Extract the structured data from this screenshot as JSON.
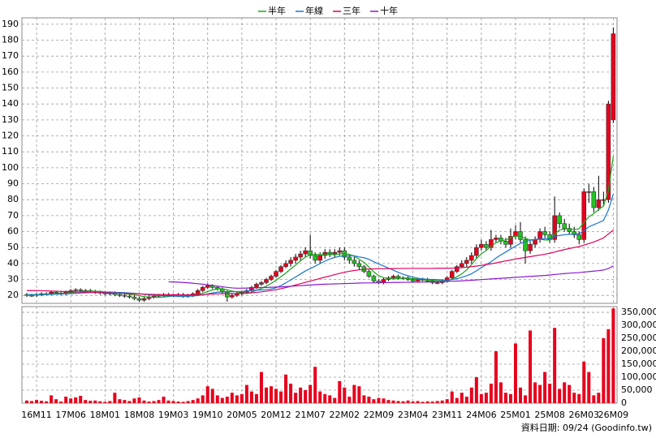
{
  "chart_data": {
    "type": "candlestick",
    "categories": [
      null,
      null,
      "16M11",
      null,
      null,
      null,
      null,
      null,
      null,
      "17M06",
      null,
      null,
      null,
      null,
      null,
      null,
      "18M01",
      null,
      null,
      null,
      null,
      null,
      null,
      "18M08",
      null,
      null,
      null,
      null,
      null,
      null,
      "19M03",
      null,
      null,
      null,
      null,
      null,
      null,
      "19M10",
      null,
      null,
      null,
      null,
      null,
      null,
      "20M05",
      null,
      null,
      null,
      null,
      null,
      null,
      "20M12",
      null,
      null,
      null,
      null,
      null,
      null,
      "21M07",
      null,
      null,
      null,
      null,
      null,
      null,
      "22M02",
      null,
      null,
      null,
      null,
      null,
      null,
      "22M09",
      null,
      null,
      null,
      null,
      null,
      null,
      "23M04",
      null,
      null,
      null,
      null,
      null,
      null,
      "23M11",
      null,
      null,
      null,
      null,
      null,
      null,
      "24M06",
      null,
      null,
      null,
      null,
      null,
      null,
      "25M01",
      null,
      null,
      null,
      null,
      null,
      null,
      "25M08",
      null,
      null,
      null,
      null,
      null,
      null,
      "26M03",
      null,
      null,
      null,
      null,
      null,
      "26M09"
    ],
    "open": [
      20.5,
      20,
      20,
      20.5,
      21,
      21,
      22,
      21.5,
      21,
      22,
      23,
      23.5,
      23,
      23,
      22.5,
      22,
      21.5,
      21,
      21.5,
      20.5,
      20,
      19.5,
      19,
      18,
      17,
      18,
      19,
      19.5,
      20,
      20.5,
      20,
      20,
      20.5,
      19.5,
      20,
      21,
      23,
      25,
      26,
      25,
      24,
      22,
      19,
      20,
      21,
      22,
      23,
      25,
      27,
      28,
      30,
      32,
      35,
      38,
      40,
      42,
      44,
      46,
      48,
      45,
      42,
      45,
      47,
      46,
      47,
      48,
      44,
      42,
      40,
      38,
      35,
      32,
      29,
      28,
      30,
      31,
      32,
      31,
      31,
      30,
      29,
      30,
      30,
      29,
      28,
      28,
      29,
      31,
      35,
      38,
      40,
      42,
      45,
      50,
      52,
      50,
      55,
      56,
      54,
      52,
      57,
      60,
      55,
      48,
      52,
      55,
      60,
      58,
      55,
      70,
      65,
      62,
      60,
      58,
      55,
      85,
      85,
      75,
      80,
      80,
      130
    ],
    "high": [
      21.5,
      21,
      21.5,
      22,
      22,
      23,
      23,
      22.5,
      23,
      24,
      24.5,
      24.5,
      24,
      24,
      23.5,
      23,
      22.5,
      22.5,
      22.5,
      21.5,
      21,
      20.5,
      20,
      19,
      19,
      20,
      20.5,
      21,
      21.5,
      21.5,
      21,
      21.5,
      21.5,
      21,
      22,
      24,
      26,
      27.5,
      27,
      26,
      25,
      23,
      21,
      22,
      23,
      24,
      26,
      28,
      29,
      31,
      33,
      36,
      39,
      42,
      44,
      46,
      48,
      50,
      58,
      47,
      47,
      49,
      49,
      49,
      50,
      50,
      46,
      44,
      42,
      39,
      36,
      33,
      30,
      31,
      32,
      33,
      33,
      32,
      32,
      31,
      31,
      31,
      31,
      30,
      29,
      30,
      32,
      36,
      39,
      42,
      44,
      47,
      52,
      55,
      54,
      61,
      58,
      58,
      56,
      62,
      64,
      66,
      57,
      54,
      57,
      62,
      63,
      60,
      82,
      72,
      68,
      65,
      63,
      60,
      87,
      90,
      88,
      95,
      85,
      142,
      188
    ],
    "low": [
      19,
      19,
      19,
      19.5,
      20,
      20,
      20.5,
      20,
      20,
      21,
      22,
      22,
      22,
      21.5,
      21,
      20.5,
      20,
      20,
      19.5,
      19,
      18.5,
      18,
      17,
      16,
      16,
      17,
      18,
      18.5,
      19,
      19,
      19,
      19,
      18.5,
      18.5,
      19,
      20,
      22,
      24,
      24,
      23,
      21,
      16,
      18,
      19,
      20,
      21,
      22,
      24,
      26,
      27,
      29,
      31,
      34,
      37,
      38,
      40,
      42,
      44,
      43,
      40,
      40,
      43,
      44,
      44,
      45,
      42,
      40,
      38,
      36,
      34,
      31,
      28,
      27,
      27,
      29,
      30,
      30,
      30,
      29,
      28,
      28,
      29,
      28,
      27,
      27,
      27,
      28,
      30,
      34,
      37,
      38,
      40,
      43,
      48,
      48,
      48,
      53,
      52,
      50,
      50,
      55,
      53,
      40,
      46,
      50,
      53,
      56,
      53,
      53,
      62,
      60,
      58,
      56,
      52,
      53,
      78,
      72,
      73,
      76,
      78,
      128
    ],
    "close": [
      20,
      20,
      20.5,
      21,
      21,
      22,
      21.5,
      21,
      22,
      23,
      23.5,
      23,
      23,
      22.5,
      22,
      21.5,
      21,
      21.5,
      20.5,
      20,
      19.5,
      19,
      18,
      17,
      18,
      19,
      19.5,
      20,
      20.5,
      20,
      20,
      20.5,
      19.5,
      20,
      21,
      23,
      25,
      26,
      25,
      24,
      22,
      19,
      20,
      21,
      22,
      23,
      25,
      27,
      28,
      30,
      32,
      35,
      38,
      40,
      42,
      44,
      46,
      48,
      45,
      42,
      45,
      47,
      46,
      47,
      48,
      44,
      42,
      40,
      38,
      35,
      32,
      29,
      28,
      30,
      31,
      32,
      31,
      31,
      30,
      29,
      30,
      30,
      29,
      28,
      28,
      29,
      31,
      35,
      38,
      40,
      42,
      45,
      50,
      52,
      50,
      55,
      56,
      54,
      52,
      57,
      60,
      55,
      48,
      52,
      55,
      60,
      58,
      55,
      70,
      65,
      62,
      60,
      58,
      55,
      85,
      85,
      75,
      80,
      80,
      140,
      184
    ],
    "color_up": "#e8001c",
    "color_down": "#22c422",
    "ylim": [
      15,
      194
    ],
    "yticks": [
      20,
      30,
      40,
      50,
      60,
      70,
      80,
      90,
      100,
      110,
      120,
      130,
      140,
      150,
      160,
      170,
      180,
      190
    ],
    "grid": true,
    "series": [
      {
        "name": "半年",
        "color": "#1aa51a",
        "values": [
          20,
          20,
          20.2,
          20.4,
          20.6,
          20.8,
          21,
          21.2,
          21.3,
          21.6,
          22,
          22.3,
          22.5,
          22.6,
          22.6,
          22.5,
          22.2,
          22,
          21.8,
          21.5,
          21,
          20.7,
          20.3,
          19.8,
          19.2,
          18.9,
          18.8,
          18.8,
          18.9,
          19.3,
          19.7,
          20,
          20,
          20,
          20.1,
          20.6,
          21.3,
          22.4,
          23.4,
          24.1,
          24.2,
          23.5,
          22.7,
          22.2,
          21.4,
          21.2,
          22,
          23.2,
          24.3,
          25.8,
          27.5,
          29.5,
          31.7,
          34,
          36.6,
          39,
          41.7,
          44,
          45.5,
          45.7,
          45.5,
          45.5,
          45.5,
          45.5,
          46,
          46.3,
          45.7,
          44.5,
          42.7,
          40.7,
          37.8,
          34.7,
          32.3,
          31.1,
          30.6,
          30.3,
          30.5,
          30.8,
          30.7,
          30.5,
          30.2,
          29.9,
          29.8,
          29.5,
          29.2,
          29,
          29.2,
          30.2,
          31.7,
          33.5,
          36,
          39.3,
          43,
          46,
          48.2,
          50.7,
          53,
          54.2,
          54.8,
          56,
          57.3,
          57,
          55.8,
          54.8,
          55,
          55.3,
          54.7,
          54.7,
          58.3,
          61,
          61.7,
          61.7,
          61.3,
          61.7,
          65.8,
          69.2,
          71.3,
          73.8,
          76,
          85.8,
          107.3
        ]
      },
      {
        "name": "年線",
        "color": "#1874cd",
        "values": [
          20.5,
          20.5,
          20.5,
          20.5,
          20.6,
          20.7,
          20.8,
          20.9,
          21,
          21.1,
          21.3,
          21.5,
          21.6,
          21.8,
          21.9,
          22,
          22,
          22,
          21.9,
          21.8,
          21.7,
          21.5,
          21.3,
          21,
          20.7,
          20.4,
          20.1,
          19.9,
          19.7,
          19.6,
          19.5,
          19.4,
          19.4,
          19.4,
          19.6,
          19.9,
          20.3,
          20.9,
          21.5,
          22,
          22.3,
          22.3,
          22.3,
          22.4,
          22.4,
          22.7,
          23.1,
          23.3,
          23.4,
          23.6,
          24,
          24.8,
          26.1,
          27.9,
          29.6,
          31.5,
          33.4,
          35.3,
          36.8,
          38.3,
          39.9,
          41.5,
          42.8,
          43.8,
          44.5,
          44.8,
          45,
          44.8,
          44.1,
          43.6,
          42.6,
          41.1,
          39.7,
          38.4,
          37.1,
          35.8,
          34.4,
          33.3,
          32.3,
          31.5,
          30.8,
          30.3,
          30.1,
          30,
          29.9,
          29.7,
          29.6,
          29.9,
          30.5,
          31.3,
          32.3,
          33.6,
          35.4,
          37.4,
          39.2,
          41.1,
          43.4,
          45.4,
          47.2,
          49.1,
          50.9,
          52.6,
          53.7,
          54.5,
          55.1,
          55.3,
          55.5,
          55.6,
          56.9,
          57.6,
          58,
          58.3,
          58.4,
          58.6,
          60.6,
          63,
          64.3,
          65.6,
          67,
          73.5,
          83.5
        ]
      },
      {
        "name": "三年",
        "color": "#e0005a",
        "values": [
          23,
          23,
          23,
          22.9,
          22.8,
          22.7,
          22.6,
          22.5,
          22.4,
          22.3,
          22.2,
          22.1,
          22,
          21.9,
          21.8,
          21.7,
          21.6,
          21.5,
          21.4,
          21.3,
          21.2,
          21.1,
          21,
          20.9,
          20.8,
          20.7,
          20.6,
          20.5,
          20.4,
          20.4,
          20.4,
          20.4,
          20.3,
          20.3,
          20.3,
          20.4,
          20.5,
          20.7,
          20.9,
          21,
          21.1,
          21.1,
          21.1,
          21.2,
          21.3,
          21.4,
          21.6,
          21.9,
          22.2,
          22.6,
          23.1,
          23.6,
          24.2,
          24.9,
          25.7,
          26.5,
          27.3,
          28.2,
          29,
          29.8,
          30.6,
          31.4,
          32.2,
          33,
          33.8,
          34.5,
          35.1,
          35.6,
          36,
          36.3,
          36.5,
          36.6,
          36.7,
          36.7,
          36.8,
          36.8,
          36.9,
          36.9,
          36.9,
          36.9,
          36.9,
          36.9,
          36.9,
          36.9,
          37,
          37,
          37,
          37.1,
          37.2,
          37.4,
          37.7,
          38,
          38.4,
          38.8,
          39.3,
          39.8,
          40.4,
          41,
          41.6,
          42.2,
          42.8,
          43.3,
          43.8,
          44.3,
          44.8,
          45.3,
          45.8,
          46.4,
          47.2,
          48,
          48.7,
          49.4,
          50,
          50.6,
          51.5,
          52.5,
          53.5,
          54.7,
          56,
          58.5,
          61
        ]
      },
      {
        "name": "十年",
        "color": "#8a1ad0",
        "values": [
          null,
          null,
          null,
          null,
          null,
          null,
          null,
          null,
          null,
          null,
          null,
          null,
          null,
          null,
          null,
          null,
          null,
          null,
          null,
          null,
          null,
          null,
          null,
          null,
          null,
          null,
          null,
          null,
          null,
          28.5,
          28.4,
          28.3,
          28.1,
          27.9,
          27.6,
          27.3,
          27,
          26.6,
          26.2,
          25.8,
          25.4,
          25,
          24.7,
          24.5,
          24.5,
          24.6,
          24.7,
          24.8,
          24.9,
          25,
          25.1,
          25.2,
          25.3,
          25.5,
          25.7,
          25.9,
          26.1,
          26.3,
          26.5,
          26.7,
          26.9,
          27,
          27.1,
          27.2,
          27.3,
          27.4,
          27.5,
          27.6,
          27.7,
          27.8,
          27.8,
          27.9,
          27.9,
          28,
          28,
          28.1,
          28.1,
          28.2,
          28.2,
          28.3,
          28.3,
          28.4,
          28.4,
          28.5,
          28.6,
          28.7,
          28.8,
          28.9,
          29,
          29.1,
          29.3,
          29.5,
          29.7,
          29.9,
          30.1,
          30.3,
          30.5,
          30.7,
          30.9,
          31.1,
          31.3,
          31.5,
          31.7,
          31.9,
          32.1,
          32.3,
          32.5,
          32.8,
          33.1,
          33.4,
          33.7,
          33.9,
          34.1,
          34.3,
          34.6,
          34.9,
          35.2,
          35.5,
          35.9,
          36.8,
          38.5
        ]
      }
    ],
    "volume": {
      "color": "#e8001c",
      "values": [
        10000,
        8000,
        12000,
        9000,
        7000,
        30000,
        15000,
        6000,
        25000,
        18000,
        22000,
        28000,
        12000,
        9000,
        10000,
        7000,
        5000,
        8000,
        40000,
        15000,
        12000,
        8000,
        18000,
        22000,
        10000,
        6000,
        8000,
        12000,
        25000,
        10000,
        8000,
        6000,
        5000,
        8000,
        12000,
        18000,
        30000,
        65000,
        55000,
        30000,
        20000,
        25000,
        40000,
        30000,
        35000,
        70000,
        45000,
        35000,
        120000,
        60000,
        65000,
        55000,
        45000,
        110000,
        75000,
        40000,
        60000,
        50000,
        70000,
        140000,
        45000,
        35000,
        30000,
        20000,
        85000,
        60000,
        25000,
        70000,
        65000,
        30000,
        25000,
        15000,
        20000,
        18000,
        12000,
        10000,
        8000,
        7000,
        10000,
        6000,
        8000,
        5000,
        7000,
        6000,
        8000,
        10000,
        15000,
        45000,
        20000,
        40000,
        25000,
        60000,
        100000,
        35000,
        40000,
        75000,
        200000,
        80000,
        40000,
        35000,
        230000,
        60000,
        30000,
        280000,
        80000,
        70000,
        120000,
        75000,
        290000,
        55000,
        80000,
        70000,
        40000,
        35000,
        160000,
        120000,
        30000,
        40000,
        250000,
        285000,
        365000
      ],
      "ylim": [
        0,
        372000
      ],
      "yticks": [
        0,
        {
          "value": 50000,
          "label": "50,000"
        },
        {
          "value": 100000,
          "label": "100,000"
        },
        {
          "value": 150000,
          "label": "150,000"
        },
        {
          "value": 200000,
          "label": "200,000"
        },
        {
          "value": 250000,
          "label": "250,000"
        },
        {
          "value": 300000,
          "label": "300,000"
        },
        {
          "value": 350000,
          "label": "350,000"
        }
      ]
    },
    "source": "資料日期: 09/24 (Goodinfo.tw)"
  }
}
